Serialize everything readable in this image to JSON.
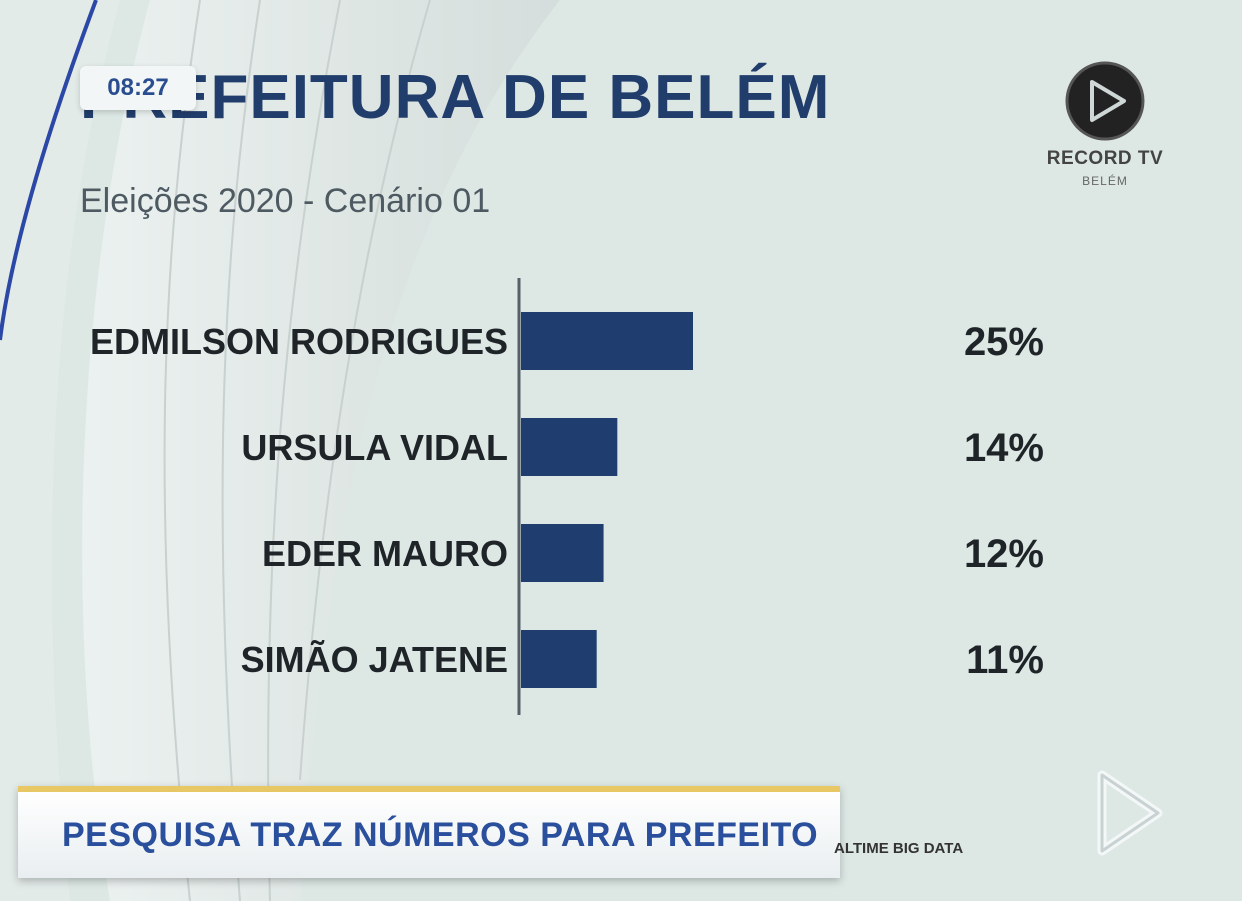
{
  "header": {
    "title": "PREFEITURA DE BELÉM",
    "subtitle": "Eleições 2020 - Cenário 01",
    "clock": "08:27"
  },
  "logo": {
    "name": "RECORD TV",
    "region": "BELÉM",
    "icon": "record-tv-logo-icon"
  },
  "chart_data": {
    "type": "bar",
    "orientation": "horizontal",
    "title": "PREFEITURA DE BELÉM",
    "subtitle": "Eleições 2020 - Cenário 01",
    "categories": [
      "EDMILSON RODRIGUES",
      "URSULA VIDAL",
      "EDER MAURO",
      "SIMÃO JATENE"
    ],
    "values": [
      25,
      14,
      12,
      11
    ],
    "value_labels": [
      "25%",
      "14%",
      "12%",
      "11%"
    ],
    "xlim": [
      0,
      100
    ],
    "grid": false,
    "bar_color": "#1f3d6e"
  },
  "ticker": {
    "headline": "PESQUISA TRAZ NÚMEROS PARA PREFEITO"
  },
  "source": {
    "text": "ALTIME BIG DATA"
  },
  "colors": {
    "title": "#213d6b",
    "bar": "#1f3d6e",
    "ticker_text": "#2a4f9c",
    "ticker_border": "#e8c864",
    "background": "#dde8e4"
  }
}
